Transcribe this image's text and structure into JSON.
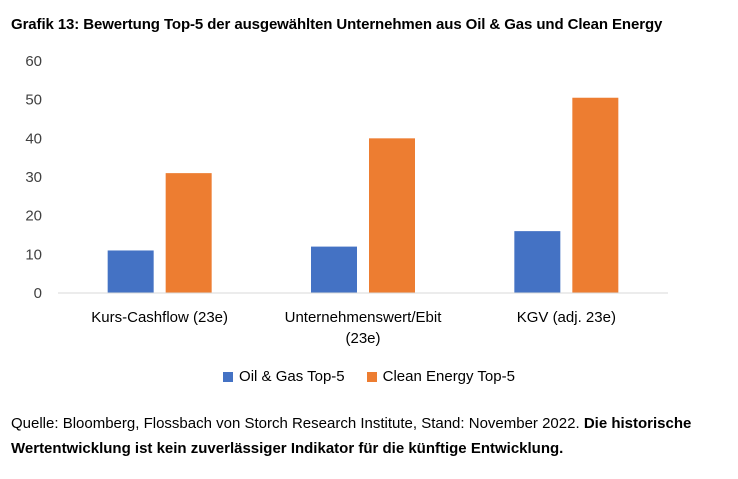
{
  "title": "Grafik 13: Bewertung Top-5 der ausgewählten Unternehmen aus Oil & Gas und Clean Energy",
  "source_text": "Quelle: Bloomberg, Flossbach von Storch Research Institute, Stand: November 2022.",
  "source_bold": "Die historische Wertentwicklung ist kein zuverlässiger Indikator für die künftige Entwicklung.",
  "chart_data": {
    "type": "bar",
    "categories": [
      "Kurs-Cashflow (23e)",
      "Unternehmenswert/Ebit (23e)",
      "KGV (adj. 23e)"
    ],
    "category_lines": [
      [
        "Kurs-Cashflow (23e)"
      ],
      [
        "Unternehmenswert/Ebit",
        "(23e)"
      ],
      [
        "KGV (adj. 23e)"
      ]
    ],
    "series": [
      {
        "name": "Oil & Gas Top-5",
        "values": [
          11,
          12,
          16
        ],
        "color": "#4472C4"
      },
      {
        "name": "Clean Energy Top-5",
        "values": [
          31,
          40,
          50.5
        ],
        "color": "#ED7D31"
      }
    ],
    "ylim": [
      0,
      60
    ],
    "yticks": [
      0,
      10,
      20,
      30,
      40,
      50,
      60
    ],
    "grid": false,
    "legend_position": "bottom"
  }
}
